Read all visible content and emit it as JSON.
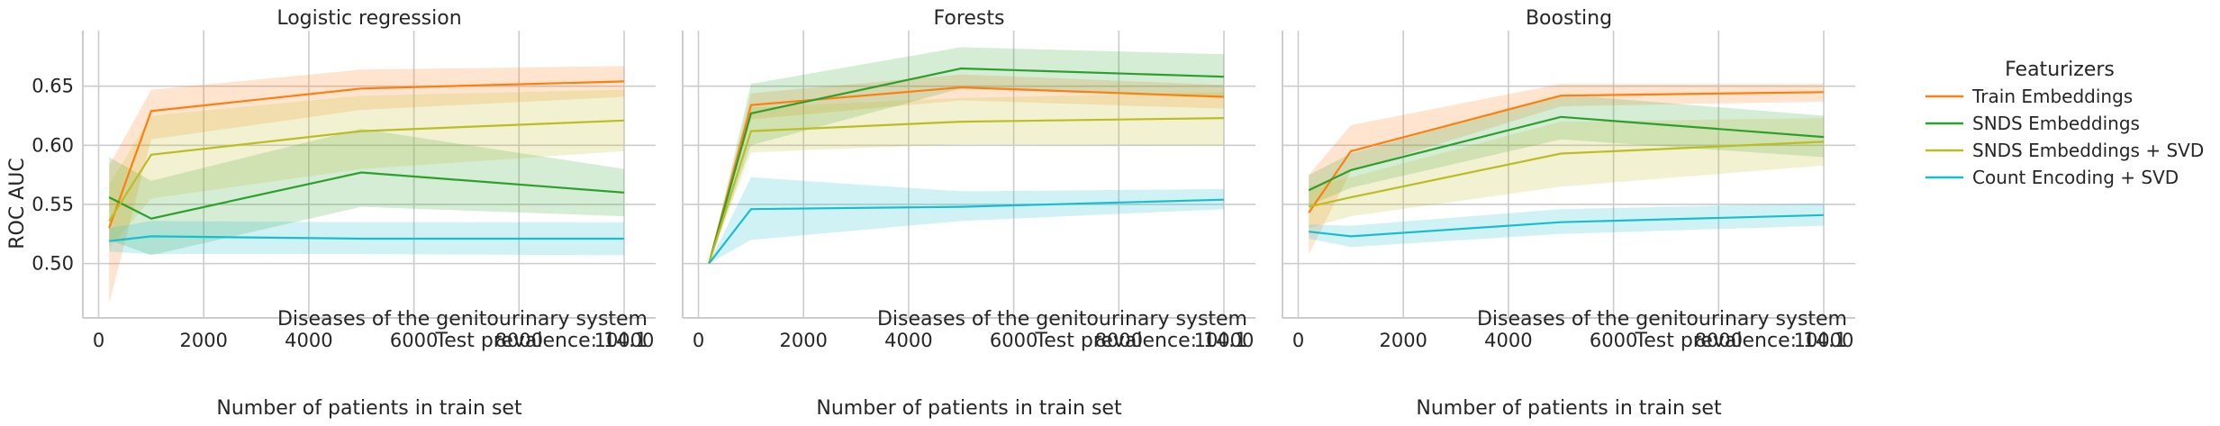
{
  "chart_data": {
    "type": "line",
    "legend": {
      "title": "Featurizers",
      "placement": "right",
      "entries": [
        {
          "name": "Train Embeddings",
          "color": "#ff7f0e"
        },
        {
          "name": "SNDS Embeddings",
          "color": "#2ca02c"
        },
        {
          "name": "SNDS Embeddings + SVD",
          "color": "#bcbd22"
        },
        {
          "name": "Count Encoding + SVD",
          "color": "#17becf"
        }
      ]
    },
    "ylabel": "ROC AUC",
    "xlabel": "Number of patients in train set",
    "xlim": [
      -300,
      10600
    ],
    "ylim": [
      0.454,
      0.697
    ],
    "xticks": [
      0,
      2000,
      4000,
      6000,
      8000,
      10000
    ],
    "yticks": [
      0.5,
      0.55,
      0.6,
      0.65
    ],
    "xtick_labels": [
      "0",
      "2000",
      "4000",
      "6000",
      "8000",
      "10000"
    ],
    "ytick_labels": [
      "0.50",
      "0.55",
      "0.60",
      "0.65"
    ],
    "grid": true,
    "panels": [
      {
        "title": "Logistic regression",
        "annotation": [
          "Diseases of the genitourinary system",
          "Test prevalence: 14.1"
        ],
        "series": [
          {
            "name": "Train Embeddings",
            "color": "#ff7f0e",
            "x": [
              200,
              1000,
              5000,
              10000
            ],
            "y": [
              0.53,
              0.629,
              0.648,
              0.654
            ],
            "lower": [
              0.466,
              0.605,
              0.63,
              0.641
            ],
            "upper": [
              0.583,
              0.647,
              0.664,
              0.667
            ]
          },
          {
            "name": "SNDS Embeddings",
            "color": "#2ca02c",
            "x": [
              200,
              1000,
              5000,
              10000
            ],
            "y": [
              0.556,
              0.538,
              0.577,
              0.56
            ],
            "lower": [
              0.52,
              0.507,
              0.548,
              0.54
            ],
            "upper": [
              0.59,
              0.57,
              0.614,
              0.58
            ]
          },
          {
            "name": "SNDS Embeddings + SVD",
            "color": "#bcbd22",
            "x": [
              200,
              1000,
              5000,
              10000
            ],
            "y": [
              0.536,
              0.592,
              0.612,
              0.621
            ],
            "lower": [
              0.513,
              0.555,
              0.58,
              0.595
            ],
            "upper": [
              0.567,
              0.625,
              0.642,
              0.647
            ]
          },
          {
            "name": "Count Encoding + SVD",
            "color": "#17becf",
            "x": [
              200,
              1000,
              5000,
              10000
            ],
            "y": [
              0.519,
              0.523,
              0.521,
              0.521
            ],
            "lower": [
              0.51,
              0.508,
              0.508,
              0.507
            ],
            "upper": [
              0.53,
              0.536,
              0.535,
              0.535
            ]
          }
        ]
      },
      {
        "title": "Forests",
        "annotation": [
          "Diseases of the genitourinary system",
          "Test prevalence: 14.1"
        ],
        "series": [
          {
            "name": "Train Embeddings",
            "color": "#ff7f0e",
            "x": [
              200,
              1000,
              5000,
              10000
            ],
            "y": [
              0.5,
              0.634,
              0.649,
              0.641
            ],
            "lower": [
              0.5,
              0.622,
              0.638,
              0.631
            ],
            "upper": [
              0.5,
              0.644,
              0.66,
              0.651
            ]
          },
          {
            "name": "SNDS Embeddings",
            "color": "#2ca02c",
            "x": [
              200,
              1000,
              5000,
              10000
            ],
            "y": [
              0.5,
              0.627,
              0.665,
              0.658
            ],
            "lower": [
              0.5,
              0.6,
              0.648,
              0.64
            ],
            "upper": [
              0.5,
              0.652,
              0.683,
              0.677
            ]
          },
          {
            "name": "SNDS Embeddings + SVD",
            "color": "#bcbd22",
            "x": [
              200,
              1000,
              5000,
              10000
            ],
            "y": [
              0.5,
              0.612,
              0.62,
              0.623
            ],
            "lower": [
              0.5,
              0.594,
              0.601,
              0.6
            ],
            "upper": [
              0.5,
              0.632,
              0.64,
              0.645
            ]
          },
          {
            "name": "Count Encoding + SVD",
            "color": "#17becf",
            "x": [
              200,
              1000,
              5000,
              10000
            ],
            "y": [
              0.5,
              0.546,
              0.548,
              0.554
            ],
            "lower": [
              0.5,
              0.52,
              0.536,
              0.546
            ],
            "upper": [
              0.5,
              0.573,
              0.561,
              0.563
            ]
          }
        ]
      },
      {
        "title": "Boosting",
        "annotation": [
          "Diseases of the genitourinary system",
          "Test prevalence: 14.1"
        ],
        "series": [
          {
            "name": "Train Embeddings",
            "color": "#ff7f0e",
            "x": [
              200,
              1000,
              5000,
              10000
            ],
            "y": [
              0.543,
              0.595,
              0.642,
              0.645
            ],
            "lower": [
              0.508,
              0.578,
              0.633,
              0.637
            ],
            "upper": [
              0.575,
              0.617,
              0.652,
              0.652
            ]
          },
          {
            "name": "SNDS Embeddings",
            "color": "#2ca02c",
            "x": [
              200,
              1000,
              5000,
              10000
            ],
            "y": [
              0.562,
              0.579,
              0.624,
              0.607
            ],
            "lower": [
              0.549,
              0.564,
              0.605,
              0.59
            ],
            "upper": [
              0.575,
              0.593,
              0.643,
              0.625
            ]
          },
          {
            "name": "SNDS Embeddings + SVD",
            "color": "#bcbd22",
            "x": [
              200,
              1000,
              5000,
              10000
            ],
            "y": [
              0.548,
              0.556,
              0.593,
              0.603
            ],
            "lower": [
              0.53,
              0.54,
              0.565,
              0.583
            ],
            "upper": [
              0.565,
              0.573,
              0.62,
              0.623
            ]
          },
          {
            "name": "Count Encoding + SVD",
            "color": "#17becf",
            "x": [
              200,
              1000,
              5000,
              10000
            ],
            "y": [
              0.527,
              0.523,
              0.535,
              0.541
            ],
            "lower": [
              0.521,
              0.514,
              0.525,
              0.532
            ],
            "upper": [
              0.533,
              0.532,
              0.546,
              0.551
            ]
          }
        ]
      }
    ]
  }
}
